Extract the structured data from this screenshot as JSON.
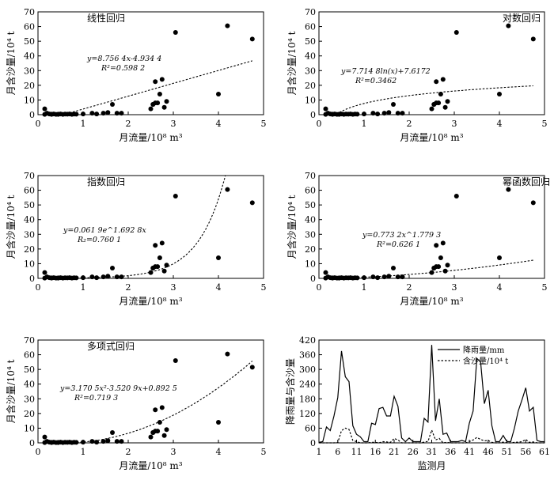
{
  "chart_data": [
    {
      "type": "scatter",
      "title": "线性回归",
      "xlabel": "月流量/10⁸ m³",
      "ylabel": "月含沙量/10⁴ t",
      "xlim": [
        0,
        5
      ],
      "ylim": [
        0,
        70
      ],
      "xticks": [
        "0",
        "1",
        "2",
        "3",
        "4",
        "5"
      ],
      "yticks": [
        "0",
        "10",
        "20",
        "30",
        "40",
        "50",
        "60",
        "70"
      ],
      "equation": "y=8.756 4x-4.934 4",
      "r2": "R²=0.598 2",
      "fit": "linear",
      "fit_params": [
        8.7564,
        -4.9344
      ]
    },
    {
      "type": "scatter",
      "title": "对数回归",
      "xlabel": "月流量/10⁸ m³",
      "ylabel": "月含沙量/10⁴ t",
      "xlim": [
        0,
        5
      ],
      "ylim": [
        0,
        70
      ],
      "xticks": [
        "0",
        "1",
        "2",
        "3",
        "4",
        "5"
      ],
      "yticks": [
        "0",
        "10",
        "20",
        "30",
        "40",
        "50",
        "60",
        "70"
      ],
      "equation": "y=7.714 8ln(x)+7.6172",
      "r2": "R²=0.3462",
      "fit": "log",
      "fit_params": [
        7.7148,
        7.6172
      ]
    },
    {
      "type": "scatter",
      "title": "指数回归",
      "xlabel": "月流量/10⁸ m³",
      "ylabel": "月含沙量/10⁴ t",
      "xlim": [
        0,
        5
      ],
      "ylim": [
        0,
        70
      ],
      "xticks": [
        "0",
        "1",
        "2",
        "3",
        "4",
        "5"
      ],
      "yticks": [
        "0",
        "10",
        "20",
        "30",
        "40",
        "50",
        "60",
        "70"
      ],
      "equation": "y=0.061 9e^1.692 8x",
      "r2": "R₂=0.760 1",
      "fit": "exp",
      "fit_params": [
        0.0619,
        1.6928
      ]
    },
    {
      "type": "scatter",
      "title": "幂函数回归",
      "xlabel": "月流量/10⁸ m³",
      "ylabel": "月含沙量/10⁴ t",
      "xlim": [
        0,
        5
      ],
      "ylim": [
        0,
        70
      ],
      "xticks": [
        "0",
        "1",
        "2",
        "3",
        "4",
        "5"
      ],
      "yticks": [
        "0",
        "10",
        "20",
        "30",
        "40",
        "50",
        "60",
        "70"
      ],
      "equation": "y=0.773 2x^1.779 3",
      "r2": "R²=0.626 1",
      "fit": "power",
      "fit_params": [
        0.7732,
        1.7793
      ]
    },
    {
      "type": "scatter",
      "title": "多项式回归",
      "xlabel": "月流量/10⁸ m³",
      "ylabel": "月含沙量/10⁴ t",
      "xlim": [
        0,
        5
      ],
      "ylim": [
        0,
        70
      ],
      "xticks": [
        "0",
        "1",
        "2",
        "3",
        "4",
        "5"
      ],
      "yticks": [
        "0",
        "10",
        "20",
        "30",
        "40",
        "50",
        "60",
        "70"
      ],
      "equation": "y=3.170 5x²-3.520 9x+0.892 5",
      "r2": "R²=0.719 3",
      "fit": "poly2",
      "fit_params": [
        3.1705,
        -3.5209,
        0.8925
      ]
    },
    {
      "type": "line",
      "xlabel": "监测月",
      "ylabel": "降雨量与含沙量",
      "xlim": [
        1,
        61
      ],
      "ylim": [
        0,
        420
      ],
      "xticks": [
        "1",
        "6",
        "11",
        "16",
        "21",
        "26",
        "31",
        "36",
        "41",
        "46",
        "51",
        "56",
        "61"
      ],
      "yticks": [
        "0",
        "60",
        "120",
        "180",
        "240",
        "300",
        "360",
        "420"
      ],
      "x": [
        1,
        2,
        3,
        4,
        5,
        6,
        7,
        8,
        9,
        10,
        11,
        12,
        13,
        14,
        15,
        16,
        17,
        18,
        19,
        20,
        21,
        22,
        23,
        24,
        25,
        26,
        27,
        28,
        29,
        30,
        31,
        32,
        33,
        34,
        35,
        36,
        37,
        38,
        39,
        40,
        41,
        42,
        43,
        44,
        45,
        46,
        47,
        48,
        49,
        50,
        51,
        52,
        53,
        54,
        55,
        56,
        57,
        58,
        59,
        60,
        61
      ],
      "series": [
        {
          "name": "降雨量/mm",
          "style": "solid",
          "values": [
            2,
            5,
            65,
            50,
            110,
            185,
            375,
            270,
            250,
            70,
            35,
            25,
            5,
            5,
            80,
            75,
            140,
            145,
            110,
            110,
            190,
            150,
            20,
            5,
            20,
            5,
            5,
            5,
            100,
            85,
            400,
            90,
            180,
            35,
            40,
            5,
            5,
            5,
            10,
            5,
            80,
            130,
            345,
            330,
            160,
            215,
            70,
            5,
            5,
            30,
            5,
            5,
            60,
            130,
            175,
            225,
            130,
            145,
            10,
            5,
            5
          ]
        },
        {
          "name": "含沙量/10⁴ t",
          "style": "dashed",
          "values": [
            0,
            0,
            0,
            0,
            0,
            1,
            50,
            60,
            55,
            10,
            5,
            0,
            0,
            0,
            2,
            2,
            0,
            5,
            4,
            2,
            18,
            12,
            0,
            0,
            0,
            0,
            0,
            0,
            3,
            6,
            52,
            12,
            18,
            0,
            2,
            0,
            0,
            0,
            0,
            0,
            5,
            12,
            22,
            14,
            8,
            10,
            2,
            0,
            0,
            3,
            0,
            0,
            2,
            3,
            5,
            14,
            2,
            4,
            0,
            0,
            0
          ]
        }
      ]
    }
  ],
  "scatter_points": {
    "x": [
      0.15,
      0.2,
      0.25,
      0.3,
      0.35,
      0.4,
      0.45,
      0.5,
      0.55,
      0.6,
      0.65,
      0.7,
      0.75,
      0.8,
      0.85,
      0.15,
      0.3,
      0.45,
      1.0,
      1.2,
      1.3,
      1.45,
      1.55,
      1.65,
      1.75,
      1.85,
      2.5,
      2.55,
      2.6,
      2.65,
      2.7,
      2.75,
      2.8,
      2.85,
      2.6,
      2.55,
      3.05,
      4.0,
      4.2,
      4.75
    ],
    "y": [
      4,
      1,
      0.5,
      0.3,
      0.5,
      0.2,
      0.3,
      0.5,
      0.2,
      0.4,
      0.3,
      0.5,
      0.2,
      0.4,
      0.3,
      0.2,
      0.2,
      0.2,
      0.5,
      1,
      0.5,
      1,
      1.5,
      7,
      1,
      1,
      4,
      7,
      8,
      8,
      14,
      24,
      5,
      9,
      22.5,
      7,
      56,
      14,
      60.5,
      51.5
    ]
  }
}
